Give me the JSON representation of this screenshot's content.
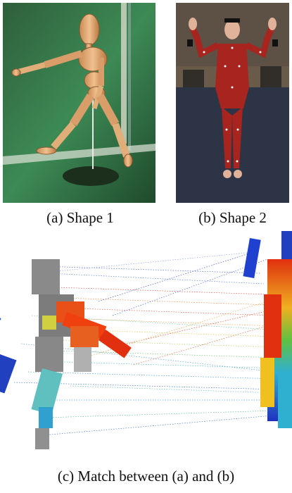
{
  "figure": {
    "panels": [
      {
        "caption": "(a) Shape 1",
        "content": "wooden artist mannequin in running pose on green backdrop"
      },
      {
        "caption": "(b) Shape 2",
        "content": "person in red motion-capture suit with arms raised in studio"
      },
      {
        "caption": "(c) Match between (a) and (b)",
        "content": "colored voxel point clouds of both shapes connected by dotted correspondence lines"
      }
    ]
  }
}
